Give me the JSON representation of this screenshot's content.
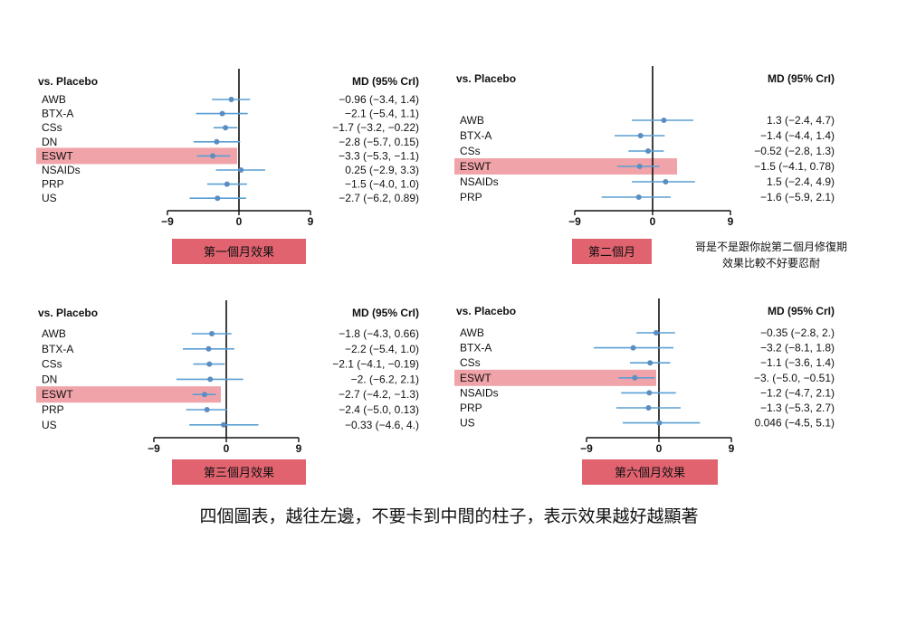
{
  "colors": {
    "point": "#5a8ec0",
    "ci": "#5a9fd4",
    "highlight": "#f0a3a8",
    "caption_box": "#e0636f"
  },
  "note_text": [
    "哥是不是跟你說第二個月修復期",
    "效果比較不好要忍耐"
  ],
  "bottom_text": "四個圖表，越往左邊，不要卡到中間的柱子，表示效果越好越顯著",
  "chart_data": [
    {
      "type": "forest",
      "caption": "第一個月效果",
      "left_header": "vs. Placebo",
      "right_header": "MD (95% CrI)",
      "xlim": [
        -9,
        9
      ],
      "xticks": [
        "−9",
        "0",
        "9"
      ],
      "highlight": "ESWT",
      "rows": [
        {
          "label": "AWB",
          "md": -0.96,
          "lo": -3.4,
          "hi": 1.4,
          "text": "−0.96 (−3.4, 1.4)"
        },
        {
          "label": "BTX-A",
          "md": -2.1,
          "lo": -5.4,
          "hi": 1.1,
          "text": "−2.1 (−5.4, 1.1)"
        },
        {
          "label": "CSs",
          "md": -1.7,
          "lo": -3.2,
          "hi": -0.22,
          "text": "−1.7 (−3.2, −0.22)"
        },
        {
          "label": "DN",
          "md": -2.8,
          "lo": -5.7,
          "hi": 0.15,
          "text": "−2.8 (−5.7, 0.15)"
        },
        {
          "label": "ESWT",
          "md": -3.3,
          "lo": -5.3,
          "hi": -1.1,
          "text": "−3.3 (−5.3, −1.1)"
        },
        {
          "label": "NSAIDs",
          "md": 0.25,
          "lo": -2.9,
          "hi": 3.3,
          "text": "0.25 (−2.9, 3.3)"
        },
        {
          "label": "PRP",
          "md": -1.5,
          "lo": -4.0,
          "hi": 1.0,
          "text": "−1.5 (−4.0, 1.0)"
        },
        {
          "label": "US",
          "md": -2.7,
          "lo": -6.2,
          "hi": 0.89,
          "text": "−2.7 (−6.2, 0.89)"
        }
      ]
    },
    {
      "type": "forest",
      "caption": "第二個月",
      "left_header": "vs. Placebo",
      "right_header": "MD (95% CrI)",
      "xlim": [
        -9,
        9
      ],
      "xticks": [
        "−9",
        "0",
        "9"
      ],
      "highlight": "ESWT",
      "rows": [
        {
          "label": "AWB",
          "md": 1.3,
          "lo": -2.4,
          "hi": 4.7,
          "text": "1.3 (−2.4, 4.7)"
        },
        {
          "label": "BTX-A",
          "md": -1.4,
          "lo": -4.4,
          "hi": 1.4,
          "text": "−1.4 (−4.4, 1.4)"
        },
        {
          "label": "CSs",
          "md": -0.52,
          "lo": -2.8,
          "hi": 1.3,
          "text": "−0.52 (−2.8, 1.3)"
        },
        {
          "label": "ESWT",
          "md": -1.5,
          "lo": -4.1,
          "hi": 0.78,
          "text": "−1.5 (−4.1, 0.78)"
        },
        {
          "label": "NSAIDs",
          "md": 1.5,
          "lo": -2.4,
          "hi": 4.9,
          "text": "1.5 (−2.4, 4.9)"
        },
        {
          "label": "PRP",
          "md": -1.6,
          "lo": -5.9,
          "hi": 2.1,
          "text": "−1.6 (−5.9, 2.1)"
        }
      ]
    },
    {
      "type": "forest",
      "caption": "第三個月效果",
      "left_header": "vs. Placebo",
      "right_header": "MD (95% CrI)",
      "xlim": [
        -9,
        9
      ],
      "xticks": [
        "−9",
        "0",
        "9"
      ],
      "highlight": "ESWT",
      "rows": [
        {
          "label": "AWB",
          "md": -1.8,
          "lo": -4.3,
          "hi": 0.66,
          "text": "−1.8 (−4.3, 0.66)"
        },
        {
          "label": "BTX-A",
          "md": -2.2,
          "lo": -5.4,
          "hi": 1.0,
          "text": "−2.2 (−5.4, 1.0)"
        },
        {
          "label": "CSs",
          "md": -2.1,
          "lo": -4.1,
          "hi": -0.19,
          "text": "−2.1 (−4.1, −0.19)"
        },
        {
          "label": "DN",
          "md": -2.0,
          "lo": -6.2,
          "hi": 2.1,
          "text": "−2. (−6.2, 2.1)"
        },
        {
          "label": "ESWT",
          "md": -2.7,
          "lo": -4.2,
          "hi": -1.3,
          "text": "−2.7 (−4.2, −1.3)"
        },
        {
          "label": "PRP",
          "md": -2.4,
          "lo": -5.0,
          "hi": 0.13,
          "text": "−2.4 (−5.0, 0.13)"
        },
        {
          "label": "US",
          "md": -0.33,
          "lo": -4.6,
          "hi": 4.0,
          "text": "−0.33 (−4.6, 4.)"
        }
      ]
    },
    {
      "type": "forest",
      "caption": "第六個月效果",
      "left_header": "vs. Placebo",
      "right_header": "MD (95% CrI)",
      "xlim": [
        -9,
        9
      ],
      "xticks": [
        "−9",
        "0",
        "9"
      ],
      "highlight": "ESWT",
      "rows": [
        {
          "label": "AWB",
          "md": -0.35,
          "lo": -2.8,
          "hi": 2.0,
          "text": "−0.35 (−2.8, 2.)"
        },
        {
          "label": "BTX-A",
          "md": -3.2,
          "lo": -8.1,
          "hi": 1.8,
          "text": "−3.2 (−8.1, 1.8)"
        },
        {
          "label": "CSs",
          "md": -1.1,
          "lo": -3.6,
          "hi": 1.4,
          "text": "−1.1 (−3.6, 1.4)"
        },
        {
          "label": "ESWT",
          "md": -3.0,
          "lo": -5.0,
          "hi": -0.51,
          "text": "−3. (−5.0, −0.51)"
        },
        {
          "label": "NSAIDs",
          "md": -1.2,
          "lo": -4.7,
          "hi": 2.1,
          "text": "−1.2 (−4.7, 2.1)"
        },
        {
          "label": "PRP",
          "md": -1.3,
          "lo": -5.3,
          "hi": 2.7,
          "text": "−1.3 (−5.3, 2.7)"
        },
        {
          "label": "US",
          "md": 0.046,
          "lo": -4.5,
          "hi": 5.1,
          "text": "0.046 (−4.5, 5.1)"
        }
      ]
    }
  ]
}
